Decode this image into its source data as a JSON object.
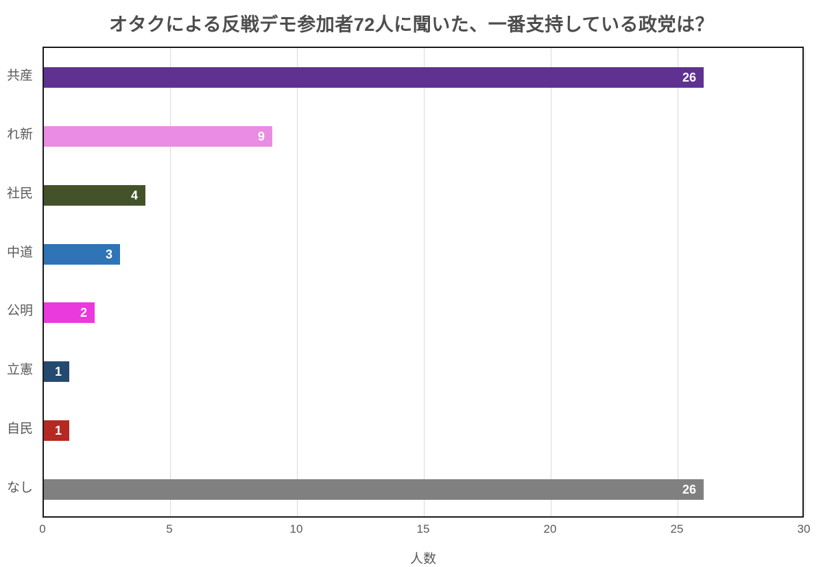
{
  "chart_data": {
    "type": "bar",
    "orientation": "horizontal",
    "title": "オタクによる反戦デモ参加者72人に聞いた、一番支持している政党は？",
    "categories": [
      "共産",
      "れ新",
      "社民",
      "中道",
      "公明",
      "立憲",
      "自民",
      "なし"
    ],
    "values": [
      26,
      9,
      4,
      3,
      2,
      1,
      1,
      26
    ],
    "bar_colors": [
      "#5f3292",
      "#ea8ce3",
      "#44522a",
      "#2e74b6",
      "#ea39dd",
      "#254a70",
      "#b42a22",
      "#808080"
    ],
    "xlabel": "人数",
    "ylabel": "",
    "xlim": [
      0,
      30
    ],
    "xticks": [
      0,
      5,
      10,
      15,
      20,
      25,
      30
    ],
    "grid": true,
    "legend": false,
    "data_labels": "inside-end",
    "colors": {
      "title": "#4d4d4d",
      "axis_labels": "#595959",
      "gridline": "#d9d9d9",
      "plot_border": "#1a1a1a",
      "value_label": "#ffffff",
      "background": "#ffffff"
    }
  }
}
